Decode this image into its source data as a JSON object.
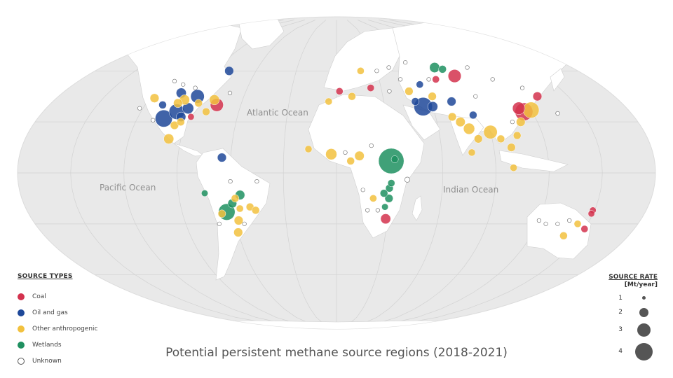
{
  "title": "Potential persistent methane source regions (2018-2021)",
  "oceans": {
    "atlantic": "Atlantic Ocean",
    "pacific": "Pacific Ocean",
    "indian": "Indian Ocean"
  },
  "legend": {
    "title": "SOURCE TYPES",
    "items": [
      {
        "label": "Coal",
        "color": "#d3324e"
      },
      {
        "label": "Oil and gas",
        "color": "#1e4899"
      },
      {
        "label": "Other anthropogenic",
        "color": "#f2c13e"
      },
      {
        "label": "Wetlands",
        "color": "#1f9060"
      },
      {
        "label": "Unknown",
        "color": "#ffffff"
      }
    ]
  },
  "rate_legend": {
    "title": "SOURCE RATE",
    "unit": "[Mt/year]",
    "sizes": [
      "1",
      "2",
      "3",
      "4"
    ]
  },
  "colors": {
    "coal": "#d3324e",
    "oil_gas": "#1e4899",
    "other": "#f2c13e",
    "wetlands": "#1f9060",
    "unknown": "#ffffff",
    "land": "#ffffff",
    "ocean": "#e8e8e8"
  },
  "sources": [
    {
      "lon": -75,
      "lat": 40,
      "type": "coal",
      "rate": 1.5
    },
    {
      "lon": -88,
      "lat": 33,
      "type": "coal",
      "rate": 0.4
    },
    {
      "lon": -104,
      "lat": 32,
      "type": "oil_gas",
      "rate": 2.2
    },
    {
      "lon": -98,
      "lat": 36,
      "type": "oil_gas",
      "rate": 1.9
    },
    {
      "lon": -92,
      "lat": 38,
      "type": "oil_gas",
      "rate": 1.2
    },
    {
      "lon": -90,
      "lat": 45,
      "type": "oil_gas",
      "rate": 1.6
    },
    {
      "lon": -102,
      "lat": 47,
      "type": "oil_gas",
      "rate": 1.0
    },
    {
      "lon": -80,
      "lat": 60,
      "type": "oil_gas",
      "rate": 0.8
    },
    {
      "lon": -94,
      "lat": 33,
      "type": "oil_gas",
      "rate": 0.9
    },
    {
      "lon": -109,
      "lat": 40,
      "type": "oil_gas",
      "rate": 0.6
    },
    {
      "lon": -117,
      "lat": 44,
      "type": "other",
      "rate": 0.8
    },
    {
      "lon": -96,
      "lat": 28,
      "type": "other",
      "rate": 0.7
    },
    {
      "lon": -97,
      "lat": 43,
      "type": "other",
      "rate": 1.0
    },
    {
      "lon": -100,
      "lat": 41,
      "type": "other",
      "rate": 0.8
    },
    {
      "lon": -93,
      "lat": 30,
      "type": "other",
      "rate": 0.6
    },
    {
      "lon": -78,
      "lat": 43,
      "type": "other",
      "rate": 1.0
    },
    {
      "lon": -80,
      "lat": 36,
      "type": "other",
      "rate": 0.6
    },
    {
      "lon": -97,
      "lat": 20,
      "type": "other",
      "rate": 1.0
    },
    {
      "lon": -87,
      "lat": 41,
      "type": "other",
      "rate": 0.6
    },
    {
      "lon": -122,
      "lat": 38,
      "type": "unknown",
      "rate": 0.5
    },
    {
      "lon": -105,
      "lat": 52,
      "type": "unknown",
      "rate": 0.5
    },
    {
      "lon": -113,
      "lat": 54,
      "type": "unknown",
      "rate": 0.5
    },
    {
      "lon": -95,
      "lat": 50,
      "type": "unknown",
      "rate": 0.5
    },
    {
      "lon": -70,
      "lat": 47,
      "type": "unknown",
      "rate": 0.5
    },
    {
      "lon": -110,
      "lat": 31,
      "type": "unknown",
      "rate": 0.5
    },
    {
      "lon": -65,
      "lat": 9,
      "type": "oil_gas",
      "rate": 0.8
    },
    {
      "lon": -55,
      "lat": -13,
      "type": "wetlands",
      "rate": 0.9
    },
    {
      "lon": -60,
      "lat": -18,
      "type": "wetlands",
      "rate": 0.8
    },
    {
      "lon": -64,
      "lat": -23,
      "type": "wetlands",
      "rate": 2.1
    },
    {
      "lon": -75,
      "lat": -12,
      "type": "wetlands",
      "rate": 0.4
    },
    {
      "lon": -58,
      "lat": -15,
      "type": "other",
      "rate": 0.6
    },
    {
      "lon": -50,
      "lat": -20,
      "type": "other",
      "rate": 0.6
    },
    {
      "lon": -47,
      "lat": -22,
      "type": "other",
      "rate": 0.6
    },
    {
      "lon": -56,
      "lat": -21,
      "type": "other",
      "rate": 0.5
    },
    {
      "lon": -58,
      "lat": -28,
      "type": "other",
      "rate": 0.8
    },
    {
      "lon": -60,
      "lat": -35,
      "type": "other",
      "rate": 0.8
    },
    {
      "lon": -67,
      "lat": -24,
      "type": "other",
      "rate": 0.6
    },
    {
      "lon": -45,
      "lat": -5,
      "type": "unknown",
      "rate": 0.5
    },
    {
      "lon": -60,
      "lat": -5,
      "type": "unknown",
      "rate": 0.5
    },
    {
      "lon": -70,
      "lat": -30,
      "type": "unknown",
      "rate": 0.5
    },
    {
      "lon": -55,
      "lat": -30,
      "type": "unknown",
      "rate": 0.5
    },
    {
      "lon": 31,
      "lat": 7,
      "type": "wetlands",
      "rate": 3.6
    },
    {
      "lon": 33,
      "lat": 8,
      "type": "wetlands",
      "rate": 0.5
    },
    {
      "lon": 27,
      "lat": -12,
      "type": "wetlands",
      "rate": 0.6
    },
    {
      "lon": 30,
      "lat": -9,
      "type": "wetlands",
      "rate": 0.6
    },
    {
      "lon": 30,
      "lat": -15,
      "type": "wetlands",
      "rate": 0.7
    },
    {
      "lon": 31,
      "lat": -6,
      "type": "wetlands",
      "rate": 0.5
    },
    {
      "lon": 28,
      "lat": -20,
      "type": "wetlands",
      "rate": 0.4
    },
    {
      "lon": 29,
      "lat": -27,
      "type": "coal",
      "rate": 1.0
    },
    {
      "lon": 21,
      "lat": -15,
      "type": "other",
      "rate": 0.5
    },
    {
      "lon": -3,
      "lat": 11,
      "type": "other",
      "rate": 1.2
    },
    {
      "lon": 13,
      "lat": 10,
      "type": "other",
      "rate": 0.9
    },
    {
      "lon": 8,
      "lat": 7,
      "type": "other",
      "rate": 0.6
    },
    {
      "lon": -16,
      "lat": 14,
      "type": "other",
      "rate": 0.5
    },
    {
      "lon": 20,
      "lat": 16,
      "type": "unknown",
      "rate": 0.5
    },
    {
      "lon": 40,
      "lat": -4,
      "type": "unknown",
      "rate": 0.9
    },
    {
      "lon": 18,
      "lat": -22,
      "type": "unknown",
      "rate": 0.5
    },
    {
      "lon": 24,
      "lat": -22,
      "type": "unknown",
      "rate": 0.5
    },
    {
      "lon": 15,
      "lat": -10,
      "type": "unknown",
      "rate": 0.5
    },
    {
      "lon": 5,
      "lat": 12,
      "type": "unknown",
      "rate": 0.5
    },
    {
      "lon": 54,
      "lat": 39,
      "type": "oil_gas",
      "rate": 2.4
    },
    {
      "lon": 60,
      "lat": 39,
      "type": "oil_gas",
      "rate": 1.0
    },
    {
      "lon": 50,
      "lat": 42,
      "type": "oil_gas",
      "rate": 0.6
    },
    {
      "lon": 73,
      "lat": 42,
      "type": "oil_gas",
      "rate": 0.8
    },
    {
      "lon": 57,
      "lat": 52,
      "type": "oil_gas",
      "rate": 0.5
    },
    {
      "lon": 83,
      "lat": 34,
      "type": "oil_gas",
      "rate": 0.6
    },
    {
      "lon": 85,
      "lat": 57,
      "type": "coal",
      "rate": 1.5
    },
    {
      "lon": 115,
      "lat": 36,
      "type": "coal",
      "rate": 2.3
    },
    {
      "lon": 113,
      "lat": 38,
      "type": "coal",
      "rate": 1.4
    },
    {
      "lon": 130,
      "lat": 45,
      "type": "coal",
      "rate": 0.8
    },
    {
      "lon": 70,
      "lat": 55,
      "type": "coal",
      "rate": 0.5
    },
    {
      "lon": 23,
      "lat": 50,
      "type": "coal",
      "rate": 0.5
    },
    {
      "lon": 75,
      "lat": 62,
      "type": "wetlands",
      "rate": 1.0
    },
    {
      "lon": 80,
      "lat": 61,
      "type": "wetlands",
      "rate": 0.6
    },
    {
      "lon": 120,
      "lat": 37,
      "type": "other",
      "rate": 2.0
    },
    {
      "lon": 90,
      "lat": 24,
      "type": "other",
      "rate": 1.6
    },
    {
      "lon": 78,
      "lat": 26,
      "type": "other",
      "rate": 1.2
    },
    {
      "lon": 74,
      "lat": 30,
      "type": "other",
      "rate": 0.9
    },
    {
      "lon": 82,
      "lat": 20,
      "type": "other",
      "rate": 0.7
    },
    {
      "lon": 70,
      "lat": 33,
      "type": "other",
      "rate": 0.7
    },
    {
      "lon": 62,
      "lat": 45,
      "type": "other",
      "rate": 0.7
    },
    {
      "lon": 48,
      "lat": 48,
      "type": "other",
      "rate": 0.7
    },
    {
      "lon": 100,
      "lat": 15,
      "type": "other",
      "rate": 0.7
    },
    {
      "lon": 105,
      "lat": 22,
      "type": "other",
      "rate": 0.6
    },
    {
      "lon": 110,
      "lat": 30,
      "type": "other",
      "rate": 0.8
    },
    {
      "lon": 95,
      "lat": 20,
      "type": "other",
      "rate": 0.6
    },
    {
      "lon": 77,
      "lat": 12,
      "type": "other",
      "rate": 0.5
    },
    {
      "lon": 18,
      "lat": 60,
      "type": "other",
      "rate": 0.5
    },
    {
      "lon": 10,
      "lat": 45,
      "type": "other",
      "rate": 0.6
    },
    {
      "lon": -5,
      "lat": 42,
      "type": "other",
      "rate": 0.5
    },
    {
      "lon": 2,
      "lat": 48,
      "type": "coal",
      "rate": 0.5
    },
    {
      "lon": 100,
      "lat": 3,
      "type": "other",
      "rate": 0.5
    },
    {
      "lon": 40,
      "lat": 62,
      "type": "unknown",
      "rate": 0.5
    },
    {
      "lon": 55,
      "lat": 65,
      "type": "unknown",
      "rate": 0.5
    },
    {
      "lon": 100,
      "lat": 62,
      "type": "unknown",
      "rate": 0.5
    },
    {
      "lon": 110,
      "lat": 55,
      "type": "unknown",
      "rate": 0.5
    },
    {
      "lon": 125,
      "lat": 50,
      "type": "unknown",
      "rate": 0.5
    },
    {
      "lon": 65,
      "lat": 55,
      "type": "unknown",
      "rate": 0.5
    },
    {
      "lon": 45,
      "lat": 55,
      "type": "unknown",
      "rate": 0.5
    },
    {
      "lon": 90,
      "lat": 45,
      "type": "unknown",
      "rate": 0.5
    },
    {
      "lon": 105,
      "lat": 30,
      "type": "unknown",
      "rate": 0.5
    },
    {
      "lon": 135,
      "lat": 35,
      "type": "unknown",
      "rate": 0.5
    },
    {
      "lon": 30,
      "lat": 60,
      "type": "unknown",
      "rate": 0.5
    },
    {
      "lon": 35,
      "lat": 48,
      "type": "unknown",
      "rate": 0.5
    },
    {
      "lon": 150,
      "lat": -33,
      "type": "coal",
      "rate": 0.5
    },
    {
      "lon": 149,
      "lat": -22,
      "type": "coal",
      "rate": 0.4
    },
    {
      "lon": 149,
      "lat": -24,
      "type": "coal",
      "rate": 0.4
    },
    {
      "lon": 140,
      "lat": -37,
      "type": "other",
      "rate": 0.6
    },
    {
      "lon": 144,
      "lat": -30,
      "type": "other",
      "rate": 0.5
    },
    {
      "lon": 120,
      "lat": -28,
      "type": "unknown",
      "rate": 0.5
    },
    {
      "lon": 125,
      "lat": -30,
      "type": "unknown",
      "rate": 0.5
    },
    {
      "lon": 132,
      "lat": -30,
      "type": "unknown",
      "rate": 0.5
    },
    {
      "lon": 138,
      "lat": -28,
      "type": "unknown",
      "rate": 0.5
    }
  ]
}
